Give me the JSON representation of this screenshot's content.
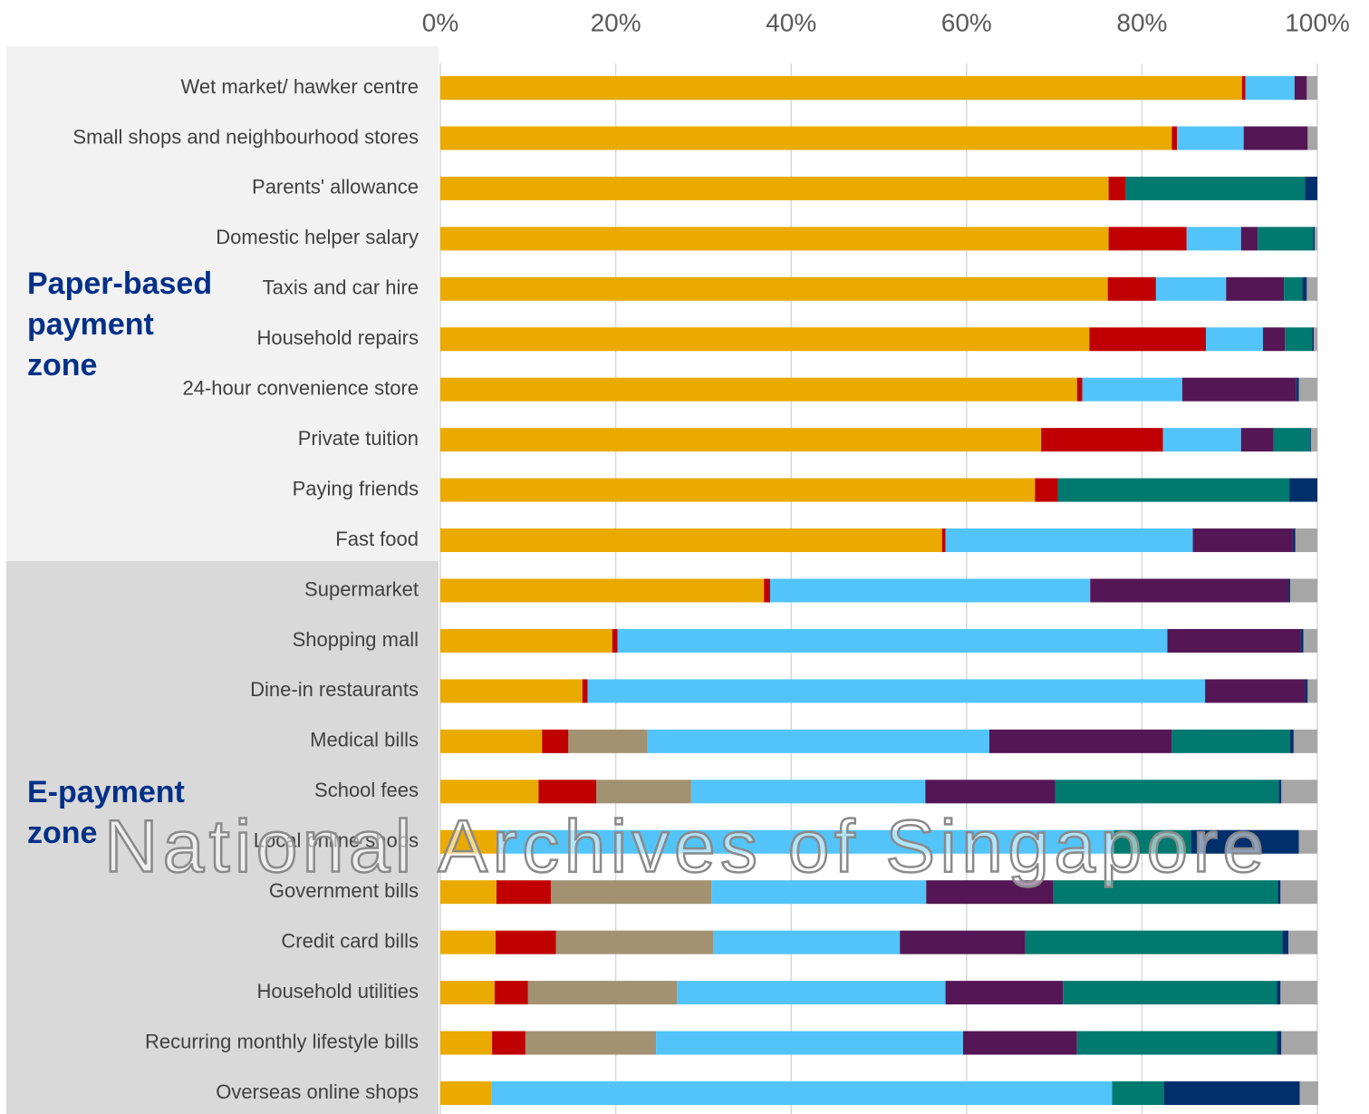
{
  "chart_data": {
    "type": "stacked_barh",
    "categories": [
      "Wet market/ hawker centre",
      "Small shops and neighbourhood stores",
      "Parents' allowance",
      "Domestic helper salary",
      "Taxis and car hire",
      "Household repairs",
      "24-hour convenience store",
      "Private tuition",
      "Paying friends",
      "Fast food",
      "Supermarket",
      "Shopping mall",
      "Dine-in restaurants",
      "Medical bills",
      "School fees",
      "Local online shops",
      "Government bills",
      "Credit card bills",
      "Household utilities",
      "Recurring monthly lifestyle bills",
      "Overseas online shops"
    ],
    "series": [
      {
        "color": "#EBAA00",
        "values": [
          91.4,
          83.4,
          76.2,
          76.2,
          76.1,
          74.0,
          72.6,
          68.5,
          67.8,
          57.2,
          36.9,
          19.6,
          16.2,
          11.6,
          11.2,
          6.6,
          6.4,
          6.3,
          6.2,
          5.9,
          5.8
        ]
      },
      {
        "color": "#C00000",
        "values": [
          0.4,
          0.6,
          1.9,
          8.9,
          5.5,
          13.3,
          0.6,
          13.9,
          2.6,
          0.4,
          0.7,
          0.6,
          0.6,
          3.0,
          6.6,
          0,
          6.2,
          6.9,
          3.8,
          3.8,
          0
        ]
      },
      {
        "color": "#A29272",
        "values": [
          0,
          0,
          0,
          0,
          0,
          0,
          0,
          0,
          0,
          0,
          0,
          0,
          0,
          9.0,
          10.8,
          0,
          18.3,
          17.9,
          17.0,
          14.9,
          0
        ]
      },
      {
        "color": "#52C4FA",
        "values": [
          5.6,
          7.6,
          0,
          6.2,
          8.0,
          6.5,
          11.4,
          8.9,
          0,
          28.2,
          36.5,
          62.7,
          70.4,
          39.0,
          26.7,
          70.2,
          24.5,
          21.3,
          30.6,
          35.0,
          70.8
        ]
      },
      {
        "color": "#541654",
        "values": [
          1.4,
          7.3,
          0,
          1.9,
          6.6,
          2.5,
          13.0,
          3.7,
          0,
          11.4,
          22.6,
          15.2,
          11.4,
          20.8,
          14.8,
          0,
          14.5,
          14.3,
          13.4,
          13.0,
          0
        ]
      },
      {
        "color": "#00796F",
        "values": [
          0,
          0,
          20.5,
          6.3,
          2.1,
          3.1,
          0,
          4.2,
          26.4,
          0,
          0,
          0,
          0,
          13.5,
          25.5,
          8.8,
          25.6,
          29.3,
          24.4,
          22.8,
          5.9
        ]
      },
      {
        "color": "#002F6C",
        "values": [
          0,
          0,
          1.4,
          0.2,
          0.5,
          0.2,
          0.3,
          0.1,
          3.2,
          0.3,
          0.2,
          0.3,
          0.3,
          0.4,
          0.3,
          12.3,
          0.3,
          0.7,
          0.4,
          0.5,
          15.5
        ]
      },
      {
        "color": "#A6A6A6",
        "values": [
          1.2,
          1.1,
          0,
          0.3,
          1.2,
          0.4,
          2.1,
          0.7,
          0,
          2.5,
          3.1,
          1.6,
          1.1,
          2.7,
          4.1,
          2.1,
          4.2,
          3.3,
          4.2,
          4.1,
          2.1
        ]
      }
    ],
    "xlim": [
      0,
      100
    ],
    "xticks": [
      {
        "value": 0,
        "label": "0%"
      },
      {
        "value": 20,
        "label": "20%"
      },
      {
        "value": 40,
        "label": "40%"
      },
      {
        "value": 60,
        "label": "60%"
      },
      {
        "value": 80,
        "label": "80%"
      },
      {
        "value": 100,
        "label": "100%"
      }
    ],
    "grid": true,
    "zones": [
      {
        "lines": [
          "Paper-based",
          "payment",
          "zone"
        ]
      },
      {
        "lines": [
          "E-payment",
          "zone"
        ]
      }
    ],
    "watermark": "National Archives of Singapore"
  }
}
